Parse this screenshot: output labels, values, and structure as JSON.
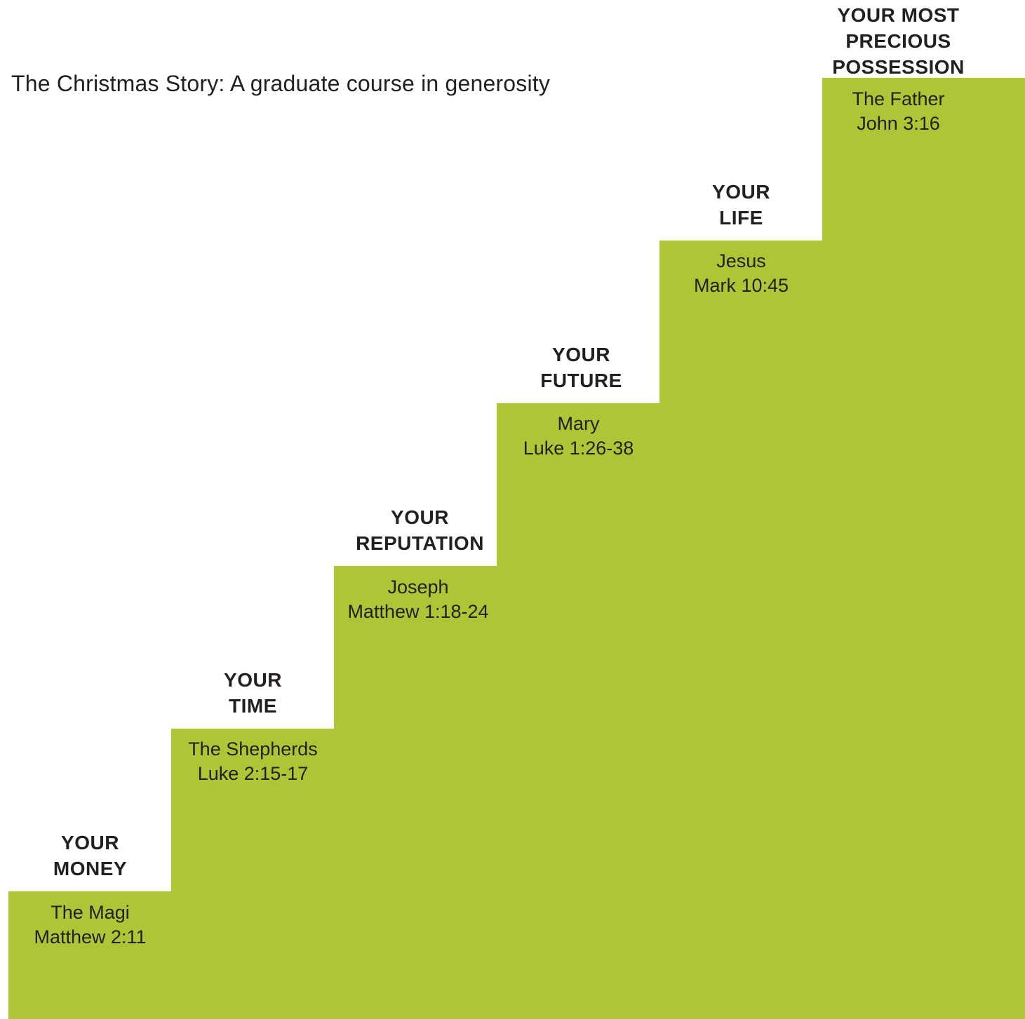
{
  "title": "The Christmas Story: A graduate course in generosity",
  "accent_color": "#aec536",
  "steps": [
    {
      "heading": [
        "YOUR",
        "MONEY"
      ],
      "giver": "The Magi",
      "reference": "Matthew 2:11"
    },
    {
      "heading": [
        "YOUR",
        "TIME"
      ],
      "giver": "The Shepherds",
      "reference": "Luke 2:15-17"
    },
    {
      "heading": [
        "YOUR",
        "REPUTATION"
      ],
      "giver": "Joseph",
      "reference": "Matthew 1:18-24"
    },
    {
      "heading": [
        "YOUR",
        "FUTURE"
      ],
      "giver": "Mary",
      "reference": "Luke 1:26-38"
    },
    {
      "heading": [
        "YOUR",
        "LIFE"
      ],
      "giver": "Jesus",
      "reference": "Mark 10:45"
    },
    {
      "heading": [
        "YOUR MOST",
        "PRECIOUS",
        "POSSESSION"
      ],
      "giver": "The Father",
      "reference": "John 3:16"
    }
  ]
}
